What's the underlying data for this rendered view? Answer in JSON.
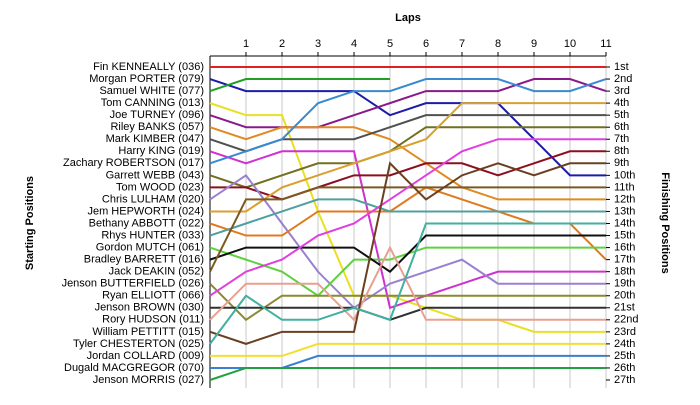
{
  "chart_data": {
    "type": "line",
    "x_label": "Laps",
    "y_label": "Starting Positions",
    "y2_label": "Finishing Positions",
    "x": [
      0,
      1,
      2,
      3,
      4,
      5,
      6,
      7,
      8,
      9,
      10,
      11
    ],
    "xlim": [
      0,
      11
    ],
    "xticks": [
      1,
      2,
      3,
      4,
      5,
      6,
      7,
      8,
      9,
      10,
      11
    ],
    "ylim": [
      27,
      1
    ],
    "yticks": [
      {
        "value": 1,
        "label": "1st"
      },
      {
        "value": 2,
        "label": "2nd"
      },
      {
        "value": 3,
        "label": "3rd"
      },
      {
        "value": 4,
        "label": "4th"
      },
      {
        "value": 5,
        "label": "5th"
      },
      {
        "value": 6,
        "label": "6th"
      },
      {
        "value": 7,
        "label": "7th"
      },
      {
        "value": 8,
        "label": "8th"
      },
      {
        "value": 9,
        "label": "9th"
      },
      {
        "value": 10,
        "label": "10th"
      },
      {
        "value": 11,
        "label": "11th"
      },
      {
        "value": 12,
        "label": "12th"
      },
      {
        "value": 13,
        "label": "13th"
      },
      {
        "value": 14,
        "label": "14th"
      },
      {
        "value": 15,
        "label": "15th"
      },
      {
        "value": 16,
        "label": "16th"
      },
      {
        "value": 17,
        "label": "17th"
      },
      {
        "value": 18,
        "label": "18th"
      },
      {
        "value": 19,
        "label": "19th"
      },
      {
        "value": 20,
        "label": "20th"
      },
      {
        "value": 21,
        "label": "21st"
      },
      {
        "value": 22,
        "label": "22nd"
      },
      {
        "value": 23,
        "label": "23rd"
      },
      {
        "value": 24,
        "label": "24th"
      },
      {
        "value": 25,
        "label": "25th"
      },
      {
        "value": 26,
        "label": "26th"
      },
      {
        "value": 27,
        "label": "27th"
      }
    ],
    "grid": true,
    "series": [
      {
        "name": "Fin KENNEALLY (036)",
        "color": "#e02020",
        "values": [
          1,
          1,
          1,
          1,
          1,
          1,
          1,
          1,
          1,
          1,
          1,
          1
        ]
      },
      {
        "name": "Morgan PORTER (079)",
        "color": "#1c1ca8",
        "values": [
          2,
          3,
          3,
          3,
          3,
          5,
          4,
          4,
          4,
          7,
          10,
          10
        ]
      },
      {
        "name": "Samuel WHITE (077)",
        "color": "#22a022",
        "values": [
          3,
          2,
          2,
          2,
          2,
          2,
          null,
          null,
          null,
          null,
          null,
          null
        ]
      },
      {
        "name": "Tom CANNING (013)",
        "color": "#e8e020",
        "values": [
          4,
          5,
          5,
          13,
          20,
          20,
          21,
          22,
          22,
          23,
          23,
          23
        ]
      },
      {
        "name": "Joe TURNEY (096)",
        "color": "#8a1a8a",
        "values": [
          5,
          6,
          6,
          6,
          5,
          4,
          3,
          3,
          3,
          2,
          2,
          3
        ]
      },
      {
        "name": "Riley BANKS (057)",
        "color": "#e08a20",
        "values": [
          6,
          7,
          6,
          6,
          6,
          7,
          9,
          11,
          12,
          12,
          12,
          12
        ]
      },
      {
        "name": "Mark KIMBER (047)",
        "color": "#505050",
        "values": [
          7,
          8,
          7,
          7,
          7,
          6,
          5,
          5,
          5,
          5,
          5,
          5
        ]
      },
      {
        "name": "Harry KING (019)",
        "color": "#d030d0",
        "values": [
          8,
          9,
          8,
          8,
          8,
          21,
          20,
          19,
          18,
          18,
          18,
          18
        ]
      },
      {
        "name": "Zachary ROBERTSON (017)",
        "color": "#3a8ad0",
        "values": [
          9,
          8,
          7,
          4,
          3,
          3,
          2,
          2,
          2,
          3,
          3,
          2
        ]
      },
      {
        "name": "Garrett WEBB (043)",
        "color": "#707020",
        "values": [
          10,
          11,
          10,
          9,
          9,
          8,
          6,
          6,
          6,
          6,
          6,
          6
        ]
      },
      {
        "name": "Tom WOOD (023)",
        "color": "#8a1020",
        "values": [
          11,
          11,
          12,
          11,
          10,
          10,
          9,
          9,
          10,
          9,
          8,
          8
        ]
      },
      {
        "name": "Chris LULHAM (020)",
        "color": "#9a80d0",
        "values": [
          12,
          10,
          14,
          18,
          21,
          19,
          18,
          17,
          19,
          19,
          19,
          19
        ]
      },
      {
        "name": "Jem HEPWORTH (024)",
        "color": "#d8a030",
        "values": [
          13,
          13,
          11,
          10,
          9,
          8,
          7,
          4,
          4,
          4,
          4,
          4
        ]
      },
      {
        "name": "Bethany ABBOTT (022)",
        "color": "#e07a20",
        "values": [
          14,
          15,
          15,
          13,
          13,
          13,
          11,
          12,
          13,
          14,
          14,
          17
        ]
      },
      {
        "name": "Rhys HUNTER (033)",
        "color": "#50a0a0",
        "values": [
          15,
          14,
          13,
          12,
          12,
          13,
          13,
          13,
          13,
          13,
          13,
          13
        ]
      },
      {
        "name": "Gordon MUTCH (061)",
        "color": "#60d040",
        "values": [
          16,
          17,
          18,
          20,
          17,
          17,
          16,
          16,
          16,
          16,
          16,
          16
        ]
      },
      {
        "name": "Bradley BARRETT (016)",
        "color": "#101010",
        "values": [
          17,
          16,
          16,
          16,
          16,
          18,
          15,
          15,
          15,
          15,
          15,
          15
        ]
      },
      {
        "name": "Jack DEAKIN (052)",
        "color": "#7a5a20",
        "values": [
          18,
          12,
          12,
          11,
          11,
          11,
          11,
          11,
          11,
          11,
          11,
          11
        ]
      },
      {
        "name": "Jenson BUTTERFIELD (026)",
        "color": "#8a8a30",
        "values": [
          19,
          22,
          20,
          20,
          20,
          20,
          20,
          20,
          20,
          20,
          20,
          20
        ]
      },
      {
        "name": "Ryan ELLIOTT (066)",
        "color": "#e040e0",
        "values": [
          20,
          18,
          17,
          15,
          14,
          12,
          10,
          8,
          7,
          7,
          7,
          7
        ]
      },
      {
        "name": "Jenson BROWN (030)",
        "color": "#303030",
        "values": [
          21,
          21,
          21,
          21,
          21,
          22,
          21,
          21,
          21,
          21,
          21,
          21
        ]
      },
      {
        "name": "Rory HUDSON (011)",
        "color": "#e8a090",
        "values": [
          22,
          19,
          19,
          19,
          22,
          16,
          22,
          22,
          22,
          22,
          22,
          22
        ]
      },
      {
        "name": "William PETTITT (015)",
        "color": "#6a4020",
        "values": [
          23,
          24,
          23,
          23,
          23,
          9,
          12,
          10,
          9,
          10,
          9,
          9
        ]
      },
      {
        "name": "Tyler CHESTERTON (025)",
        "color": "#40b0a0",
        "values": [
          24,
          20,
          22,
          22,
          21,
          22,
          14,
          14,
          14,
          14,
          14,
          14
        ]
      },
      {
        "name": "Jordan COLLARD (009)",
        "color": "#f0e030",
        "values": [
          25,
          25,
          25,
          24,
          24,
          24,
          24,
          24,
          24,
          24,
          24,
          24
        ]
      },
      {
        "name": "Dugald MACGREGOR (070)",
        "color": "#3a80d0",
        "values": [
          26,
          26,
          26,
          25,
          25,
          25,
          25,
          25,
          25,
          25,
          25,
          25
        ]
      },
      {
        "name": "Jenson MORRIS (027)",
        "color": "#20a040",
        "values": [
          27,
          26,
          26,
          26,
          26,
          26,
          26,
          26,
          26,
          26,
          26,
          26
        ]
      }
    ]
  }
}
